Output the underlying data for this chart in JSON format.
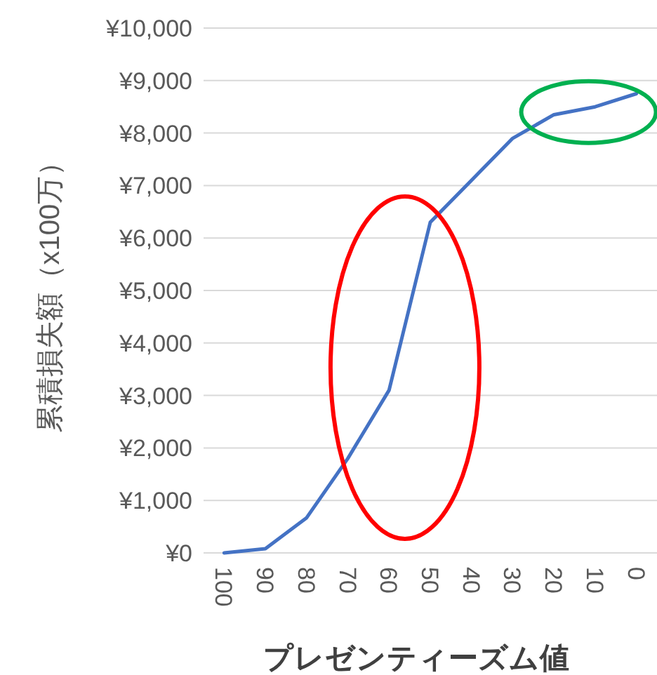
{
  "chart_data": {
    "type": "line",
    "xlabel": "プレゼンティーズム値",
    "ylabel": "累積損失額（x100万）",
    "categories": [
      "100",
      "90",
      "80",
      "70",
      "60",
      "50",
      "40",
      "30",
      "20",
      "10",
      "0"
    ],
    "series": [
      {
        "color": "#4472c4",
        "values": [
          0,
          80,
          670,
          1800,
          3100,
          6300,
          7100,
          7900,
          8350,
          8500,
          8750
        ]
      }
    ],
    "ylim": [
      0,
      10000
    ],
    "yticks": [
      {
        "value": 0,
        "label": "¥0"
      },
      {
        "value": 1000,
        "label": "¥1,000"
      },
      {
        "value": 2000,
        "label": "¥2,000"
      },
      {
        "value": 3000,
        "label": "¥3,000"
      },
      {
        "value": 4000,
        "label": "¥4,000"
      },
      {
        "value": 5000,
        "label": "¥5,000"
      },
      {
        "value": 6000,
        "label": "¥6,000"
      },
      {
        "value": 7000,
        "label": "¥7,000"
      },
      {
        "value": 8000,
        "label": "¥8,000"
      },
      {
        "value": 9000,
        "label": "¥9,000"
      },
      {
        "value": 10000,
        "label": "¥10,000"
      }
    ],
    "grid": "y",
    "marker": "none",
    "line_style": "solid"
  }
}
